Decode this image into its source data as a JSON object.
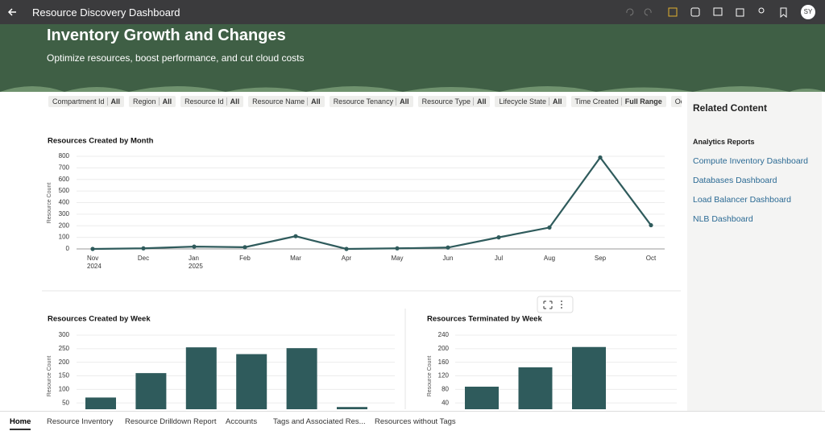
{
  "header": {
    "title": "Resource Discovery Dashboard",
    "avatar": "SY"
  },
  "banner": {
    "title": "Inventory Growth and Changes",
    "subtitle": "Optimize resources, boost performance, and cut cloud costs"
  },
  "filters": [
    {
      "label": "Compartment Id",
      "value": "All"
    },
    {
      "label": "Region",
      "value": "All"
    },
    {
      "label": "Resource Id",
      "value": "All"
    },
    {
      "label": "Resource Name",
      "value": "All"
    },
    {
      "label": "Resource Tenancy",
      "value": "All"
    },
    {
      "label": "Resource Type",
      "value": "All"
    },
    {
      "label": "Lifecycle State",
      "value": "All"
    },
    {
      "label": "Time Created",
      "value": "Full Range"
    },
    {
      "label": "Ocira Up"
    }
  ],
  "chart_data": [
    {
      "type": "line",
      "title": "Resources Created by Month",
      "y_label": "Resource Count",
      "categories": [
        "Nov",
        "Dec",
        "Jan",
        "Feb",
        "Mar",
        "Apr",
        "May",
        "Jun",
        "Jul",
        "Aug",
        "Sep",
        "Oct"
      ],
      "category_sublabels": [
        "2024",
        null,
        "2025",
        null,
        null,
        null,
        null,
        null,
        null,
        null,
        null,
        null
      ],
      "values": [
        0,
        5,
        20,
        15,
        110,
        0,
        5,
        12,
        100,
        185,
        790,
        205
      ],
      "color": "#2f5b5c",
      "ylim": [
        0,
        800
      ],
      "yticks": [
        0,
        100,
        200,
        300,
        400,
        500,
        600,
        700,
        800
      ],
      "grid": true
    },
    {
      "type": "bar",
      "title": "Resources Created by Week",
      "y_label": "Resource Count",
      "values": [
        70,
        160,
        255,
        230,
        252,
        35
      ],
      "color": "#2f5b5c",
      "ylim": [
        0,
        300
      ],
      "yticks": [
        50,
        100,
        150,
        200,
        250,
        300
      ],
      "grid": true
    },
    {
      "type": "bar",
      "title": "Resources Terminated by Week",
      "y_label": "Resource Count",
      "values": [
        88,
        145,
        205
      ],
      "color": "#2f5b5c",
      "ylim": [
        0,
        240
      ],
      "yticks": [
        40,
        80,
        120,
        160,
        200,
        240
      ],
      "grid": true
    }
  ],
  "related": {
    "title": "Related Content",
    "section": "Analytics Reports",
    "links": [
      "Compute Inventory Dashboard",
      "Databases Dashboard",
      "Load Balancer Dashboard",
      "NLB Dashboard"
    ]
  },
  "tabs": [
    "Home",
    "Resource Inventory",
    "Resource Drilldown Report",
    "Accounts",
    "Tags and Associated Res...",
    "Resources without Tags"
  ]
}
